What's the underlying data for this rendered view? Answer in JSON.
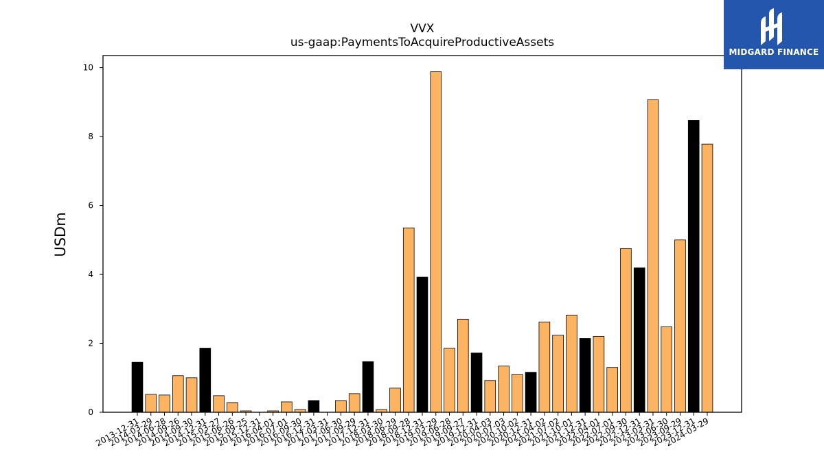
{
  "chart_data": {
    "type": "bar",
    "title": "VVX",
    "subtitle": "us-gaap:PaymentsToAcquireProductiveAssets",
    "xlabel": "",
    "ylabel": "USDm",
    "ylim": [
      0,
      10.35
    ],
    "yticks": [
      "0",
      "2",
      "4",
      "6",
      "8",
      "10"
    ],
    "grid": false,
    "colors": {
      "annual": "#000000",
      "quarterly": "#fdb462",
      "edge": "#000000"
    },
    "categories": [
      "2013-12-31",
      "2014-03-29",
      "2014-06-28",
      "2014-09-26",
      "2014-09-30",
      "2014-12-31",
      "2015-03-27",
      "2015-06-26",
      "2015-09-25",
      "2015-12-31",
      "2016-04-01",
      "2016-07-01",
      "2016-09-30",
      "2016-12-31",
      "2017-03-31",
      "2017-06-30",
      "2017-09-29",
      "2017-12-31",
      "2018-03-30",
      "2018-06-29",
      "2018-09-28",
      "2018-12-31",
      "2019-03-29",
      "2019-06-28",
      "2019-09-27",
      "2019-12-31",
      "2020-04-03",
      "2020-07-03",
      "2020-10-02",
      "2020-12-31",
      "2021-04-02",
      "2021-07-02",
      "2021-10-01",
      "2021-12-31",
      "2022-04-01",
      "2022-07-01",
      "2022-09-30",
      "2022-12-31",
      "2023-03-31",
      "2023-06-30",
      "2023-09-29",
      "2023-12-31",
      "2024-03-29"
    ],
    "values": [
      1.45,
      0.52,
      0.5,
      1.06,
      1.0,
      1.86,
      0.48,
      0.28,
      0.04,
      0.0,
      0.04,
      0.3,
      0.08,
      0.34,
      0.0,
      0.34,
      0.54,
      1.47,
      0.08,
      0.7,
      5.35,
      3.92,
      9.88,
      1.86,
      2.7,
      1.72,
      0.92,
      1.34,
      1.1,
      1.16,
      2.62,
      2.24,
      2.82,
      2.14,
      2.2,
      1.3,
      4.75,
      4.19,
      9.07,
      2.48,
      5.0,
      8.47,
      7.78
    ],
    "annual": [
      true,
      false,
      false,
      false,
      false,
      true,
      false,
      false,
      false,
      true,
      false,
      false,
      false,
      true,
      false,
      false,
      false,
      true,
      false,
      false,
      false,
      true,
      false,
      false,
      false,
      true,
      false,
      false,
      false,
      true,
      false,
      false,
      false,
      true,
      false,
      false,
      false,
      true,
      false,
      false,
      false,
      true,
      false
    ]
  },
  "logo": {
    "text": "MIDGARD FINANCE",
    "icon": "midgard-logo-icon"
  }
}
